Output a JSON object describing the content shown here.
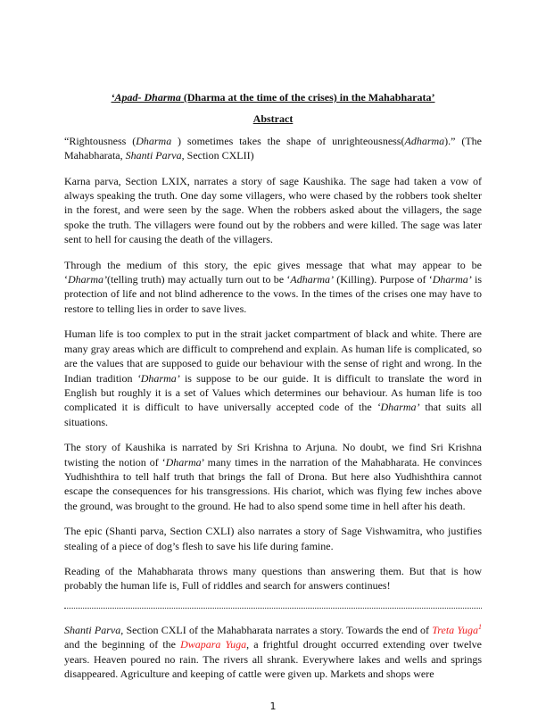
{
  "title": [
    {
      "t": "‘Apad- Dharma",
      "i": true
    },
    {
      "t": " (Dharma at the time of the crises) in the Mahabharata’"
    }
  ],
  "abstract_heading": "Abstract",
  "paragraphs": [
    [
      {
        "t": "“Rightousness ("
      },
      {
        "t": "Dharma",
        "i": true
      },
      {
        "t": " ) sometimes takes the shape of unrighteousness("
      },
      {
        "t": "Adharma",
        "i": true
      },
      {
        "t": ").” (The Mahabharata, "
      },
      {
        "t": "Shanti Parva",
        "i": true
      },
      {
        "t": ", Section CXLII)"
      }
    ],
    [
      {
        "t": "Karna parva, Section LXIX, narrates a story of sage Kaushika. The sage had taken a vow of always speaking the truth. One day some villagers, who were chased by the robbers took shelter in the forest, and were seen by the sage. When the robbers asked about the villagers, the sage spoke the truth. The villagers were found out by the robbers and were killed. The sage was later sent to hell for causing the death of the villagers."
      }
    ],
    [
      {
        "t": "Through the medium of this story, the epic gives message that what may appear to be ‘"
      },
      {
        "t": "Dharma’",
        "i": true
      },
      {
        "t": "(telling truth) may actually turn out to be ‘"
      },
      {
        "t": "Adharma’",
        "i": true
      },
      {
        "t": " (Killing). Purpose of ‘"
      },
      {
        "t": "Dharma’",
        "i": true
      },
      {
        "t": " is protection of life and not blind adherence to the vows. In the times of the crises one may have to restore to telling lies in order to save lives."
      }
    ],
    [
      {
        "t": "Human life is too complex to put in the strait jacket compartment of black and white. There are many gray areas which are difficult to comprehend and explain. As human life is complicated, so are the values that are supposed to guide our behaviour with the sense of right and wrong. In the Indian tradition "
      },
      {
        "t": "‘Dharma’",
        "i": true
      },
      {
        "t": " is suppose to be our guide. It is difficult to translate the word in English but roughly it is a set of Values which determines our behaviour. As human life is too complicated it is difficult to have universally accepted code of the "
      },
      {
        "t": "‘Dharma’",
        "i": true
      },
      {
        "t": " that suits all situations."
      }
    ],
    [
      {
        "t": "The story of Kaushika is narrated by Sri Krishna to Arjuna. No doubt, we find Sri Krishna twisting the notion of ‘"
      },
      {
        "t": "Dharma",
        "i": true
      },
      {
        "t": "’ many times in the narration of the Mahabharata. He convinces Yudhishthira to tell half truth that brings the fall of Drona. But here also Yudhishthira cannot escape the consequences for his transgressions. His chariot, which was flying few inches above the ground, was brought to the ground. He had to also spend some time in hell after his death."
      }
    ],
    [
      {
        "t": "The epic (Shanti parva, Section CXLI) also narrates a story of Sage Vishwamitra, who justifies stealing of a piece of dog’s flesh to save his life during famine."
      }
    ],
    [
      {
        "t": "Reading of the Mahabharata throws many questions than answering them. But that is how probably the human life is, Full of riddles and search for answers continues!"
      }
    ],
    [
      {
        "t": "Shanti Parva",
        "i": true
      },
      {
        "t": ", Section CXLI of the Mahabharata narrates a story. Towards the end of "
      },
      {
        "t": "Treta Yuga",
        "i": true,
        "red": true
      },
      {
        "t": "1",
        "sup": true,
        "i": true,
        "red": true
      },
      {
        "t": " and the beginning of the "
      },
      {
        "t": "Dwapara Yuga",
        "i": true,
        "red": true
      },
      {
        "t": ", a frightful drought occurred extending over twelve years. Heaven poured no rain. The rivers all shrank. Everywhere lakes and wells and springs disappeared. Agriculture and keeping of cattle were given up. Markets and shops were"
      }
    ]
  ],
  "page_number": "1",
  "colors": {
    "link_red": "#ee1c1c",
    "text": "#111111"
  }
}
